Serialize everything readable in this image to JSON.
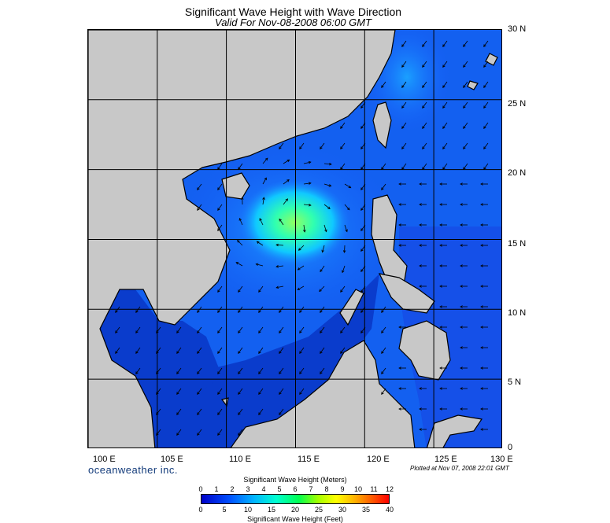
{
  "header": {
    "title": "Significant Wave Height with Wave Direction",
    "subtitle": "Valid For Nov-08-2008 06:00 GMT"
  },
  "map": {
    "lat_labels": [
      "30 N",
      "25 N",
      "20 N",
      "15 N",
      "10 N",
      "5 N",
      "0"
    ],
    "lon_labels": [
      "100 E",
      "105 E",
      "110 E",
      "115 E",
      "120 E",
      "125 E",
      "130 E"
    ],
    "colors": {
      "land": "#c8c8c8",
      "ocean_low": "#0a3ccc",
      "ocean_mid": "#1a7cff",
      "ocean_high": "#00ffd0",
      "peak": "#70ff70",
      "grid": "#000000"
    }
  },
  "footer": {
    "brand": "oceanweather inc.",
    "plotted": "Plotted at Nov 07, 2008 22:01 GMT"
  },
  "colorbar": {
    "meters_title": "Significant Wave Height (Meters)",
    "meters_ticks": [
      "0",
      "1",
      "2",
      "3",
      "4",
      "5",
      "6",
      "7",
      "8",
      "9",
      "10",
      "11",
      "12"
    ],
    "feet_ticks": [
      "0",
      "5",
      "10",
      "15",
      "20",
      "25",
      "30",
      "35",
      "40"
    ],
    "feet_title": "Significant Wave Height (Feet)"
  }
}
